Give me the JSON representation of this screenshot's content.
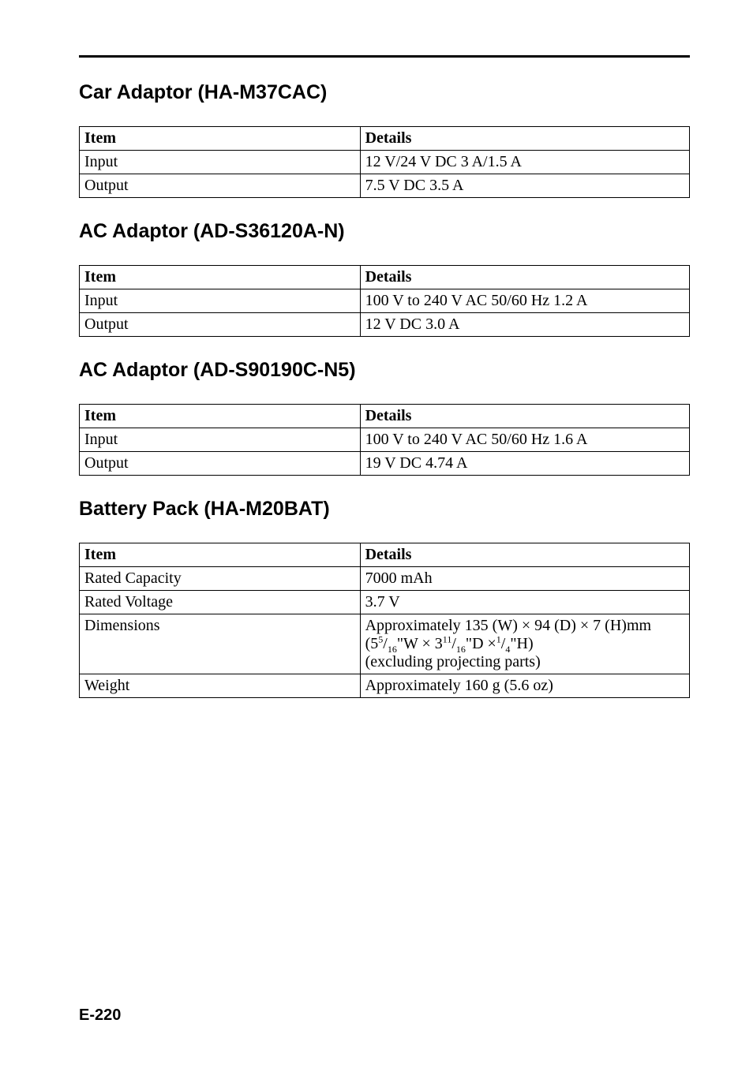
{
  "sections": [
    {
      "heading": "Car Adaptor (HA-M37CAC)",
      "columns": {
        "item": "Item",
        "details": "Details"
      },
      "rows": [
        {
          "item": "Input",
          "details": "12 V/24 V DC 3 A/1.5 A"
        },
        {
          "item": "Output",
          "details": "7.5 V DC 3.5 A"
        }
      ]
    },
    {
      "heading": "AC Adaptor (AD-S36120A-N)",
      "columns": {
        "item": "Item",
        "details": "Details"
      },
      "rows": [
        {
          "item": "Input",
          "details": "100 V to 240 V AC 50/60 Hz 1.2 A"
        },
        {
          "item": "Output",
          "details": "12 V DC 3.0 A"
        }
      ]
    },
    {
      "heading": "AC Adaptor (AD-S90190C-N5)",
      "columns": {
        "item": "Item",
        "details": "Details"
      },
      "rows": [
        {
          "item": "Input",
          "details": "100 V to 240 V AC 50/60 Hz 1.6 A"
        },
        {
          "item": "Output",
          "details": "19 V DC 4.74 A"
        }
      ]
    },
    {
      "heading": "Battery Pack (HA-M20BAT)",
      "columns": {
        "item": "Item",
        "details": "Details"
      },
      "rows": [
        {
          "item": "Rated Capacity",
          "details": "7000 mAh"
        },
        {
          "item": "Rated Voltage",
          "details": "3.7 V"
        },
        {
          "item": "Dimensions",
          "details_html": "Approximately 135 (W) × 94 (D) × 7 (H)mm<br>(5<span class=\"frac-sup\">5</span>/<span class=\"frac-sub\">16</span>\"W × 3<span class=\"frac-sup\">11</span>/<span class=\"frac-sub\">16</span>\"D ×<span class=\"frac-sup\">1</span>/<span class=\"frac-sub\">4</span>\"H)<br>(excluding projecting parts)"
        },
        {
          "item": "Weight",
          "details": "Approximately 160 g (5.6 oz)"
        }
      ]
    }
  ],
  "footer": "E-220"
}
